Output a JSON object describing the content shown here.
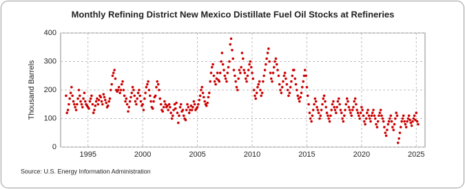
{
  "chart_data": {
    "type": "scatter",
    "title": "Monthly Refining District New Mexico Distillate Fuel Oil Stocks at Refineries",
    "ylabel": "Thousand Barrels",
    "source": "Source: U.S. Energy Information Administration",
    "color": "#cc0000",
    "grid": true,
    "xlim": [
      1992.5,
      2025.8
    ],
    "xticks": [
      1995,
      2000,
      2005,
      2010,
      2015,
      2020,
      2025
    ],
    "ylim": [
      0,
      400
    ],
    "yticks": [
      0,
      100,
      200,
      300,
      400
    ],
    "x": [
      1993,
      1993.08,
      1993.17,
      1993.25,
      1993.33,
      1993.42,
      1993.5,
      1993.58,
      1993.67,
      1993.75,
      1993.83,
      1993.92,
      1994,
      1994.08,
      1994.17,
      1994.25,
      1994.33,
      1994.42,
      1994.5,
      1994.58,
      1994.67,
      1994.75,
      1994.83,
      1994.92,
      1995,
      1995.08,
      1995.17,
      1995.25,
      1995.33,
      1995.42,
      1995.5,
      1995.58,
      1995.67,
      1995.75,
      1995.83,
      1995.92,
      1996,
      1996.08,
      1996.17,
      1996.25,
      1996.33,
      1996.42,
      1996.5,
      1996.58,
      1996.67,
      1996.75,
      1996.83,
      1996.92,
      1997,
      1997.08,
      1997.17,
      1997.25,
      1997.33,
      1997.42,
      1997.5,
      1997.58,
      1997.67,
      1997.75,
      1997.83,
      1997.92,
      1998,
      1998.08,
      1998.17,
      1998.25,
      1998.33,
      1998.42,
      1998.5,
      1998.58,
      1998.67,
      1998.75,
      1998.83,
      1998.92,
      1999,
      1999.08,
      1999.17,
      1999.25,
      1999.33,
      1999.42,
      1999.5,
      1999.58,
      1999.67,
      1999.75,
      1999.83,
      1999.92,
      2000,
      2000.08,
      2000.17,
      2000.25,
      2000.33,
      2000.42,
      2000.5,
      2000.58,
      2000.67,
      2000.75,
      2000.83,
      2000.92,
      2001,
      2001.08,
      2001.17,
      2001.25,
      2001.33,
      2001.42,
      2001.5,
      2001.58,
      2001.67,
      2001.75,
      2001.83,
      2001.92,
      2002,
      2002.08,
      2002.17,
      2002.25,
      2002.33,
      2002.42,
      2002.5,
      2002.58,
      2002.67,
      2002.75,
      2002.83,
      2002.92,
      2003,
      2003.08,
      2003.17,
      2003.25,
      2003.33,
      2003.42,
      2003.5,
      2003.58,
      2003.67,
      2003.75,
      2003.83,
      2003.92,
      2004,
      2004.08,
      2004.17,
      2004.25,
      2004.33,
      2004.42,
      2004.5,
      2004.58,
      2004.67,
      2004.75,
      2004.83,
      2004.92,
      2005,
      2005.08,
      2005.17,
      2005.25,
      2005.33,
      2005.42,
      2005.5,
      2005.58,
      2005.67,
      2005.75,
      2005.83,
      2005.92,
      2006,
      2006.08,
      2006.17,
      2006.25,
      2006.33,
      2006.42,
      2006.5,
      2006.58,
      2006.67,
      2006.75,
      2006.83,
      2006.92,
      2007,
      2007.08,
      2007.17,
      2007.25,
      2007.33,
      2007.42,
      2007.5,
      2007.58,
      2007.67,
      2007.75,
      2007.83,
      2007.92,
      2008,
      2008.08,
      2008.17,
      2008.25,
      2008.33,
      2008.42,
      2008.5,
      2008.58,
      2008.67,
      2008.75,
      2008.83,
      2008.92,
      2009,
      2009.08,
      2009.17,
      2009.25,
      2009.33,
      2009.42,
      2009.5,
      2009.58,
      2009.67,
      2009.75,
      2009.83,
      2009.92,
      2010,
      2010.08,
      2010.17,
      2010.25,
      2010.33,
      2010.42,
      2010.5,
      2010.58,
      2010.67,
      2010.75,
      2010.83,
      2010.92,
      2011,
      2011.08,
      2011.17,
      2011.25,
      2011.33,
      2011.42,
      2011.5,
      2011.58,
      2011.67,
      2011.75,
      2011.83,
      2011.92,
      2012,
      2012.08,
      2012.17,
      2012.25,
      2012.33,
      2012.42,
      2012.5,
      2012.58,
      2012.67,
      2012.75,
      2012.83,
      2012.92,
      2013,
      2013.08,
      2013.17,
      2013.25,
      2013.33,
      2013.42,
      2013.5,
      2013.58,
      2013.67,
      2013.75,
      2013.83,
      2013.92,
      2014,
      2014.08,
      2014.17,
      2014.25,
      2014.33,
      2014.42,
      2014.5,
      2014.58,
      2014.67,
      2014.75,
      2014.83,
      2014.92,
      2015,
      2015.08,
      2015.17,
      2015.25,
      2015.33,
      2015.42,
      2015.5,
      2015.58,
      2015.67,
      2015.75,
      2015.83,
      2015.92,
      2016,
      2016.08,
      2016.17,
      2016.25,
      2016.33,
      2016.42,
      2016.5,
      2016.58,
      2016.67,
      2016.75,
      2016.83,
      2016.92,
      2017,
      2017.08,
      2017.17,
      2017.25,
      2017.33,
      2017.42,
      2017.5,
      2017.58,
      2017.67,
      2017.75,
      2017.83,
      2017.92,
      2018,
      2018.08,
      2018.17,
      2018.25,
      2018.33,
      2018.42,
      2018.5,
      2018.58,
      2018.67,
      2018.75,
      2018.83,
      2018.92,
      2019,
      2019.08,
      2019.17,
      2019.25,
      2019.33,
      2019.42,
      2019.5,
      2019.58,
      2019.67,
      2019.75,
      2019.83,
      2019.92,
      2020,
      2020.08,
      2020.17,
      2020.25,
      2020.33,
      2020.42,
      2020.5,
      2020.58,
      2020.67,
      2020.75,
      2020.83,
      2020.92,
      2021,
      2021.08,
      2021.17,
      2021.25,
      2021.33,
      2021.42,
      2021.5,
      2021.58,
      2021.67,
      2021.75,
      2021.83,
      2021.92,
      2022,
      2022.08,
      2022.17,
      2022.25,
      2022.33,
      2022.42,
      2022.5,
      2022.58,
      2022.67,
      2022.75,
      2022.83,
      2022.92,
      2023,
      2023.08,
      2023.17,
      2023.25,
      2023.33,
      2023.42,
      2023.5,
      2023.58,
      2023.67,
      2023.75,
      2023.83,
      2023.92,
      2024,
      2024.08,
      2024.17,
      2024.25,
      2024.33,
      2024.42,
      2024.5,
      2024.58,
      2024.67,
      2024.75,
      2024.83,
      2024.92,
      2025,
      2025.08,
      2025.17
    ],
    "values": [
      180,
      120,
      130,
      150,
      170,
      190,
      210,
      180,
      160,
      150,
      140,
      130,
      150,
      170,
      200,
      180,
      160,
      150,
      140,
      170,
      190,
      160,
      150,
      145,
      140,
      135,
      160,
      170,
      180,
      150,
      120,
      130,
      145,
      160,
      170,
      150,
      165,
      180,
      175,
      160,
      150,
      185,
      175,
      165,
      155,
      140,
      145,
      160,
      170,
      200,
      220,
      250,
      260,
      270,
      240,
      200,
      195,
      200,
      210,
      190,
      200,
      220,
      230,
      200,
      180,
      160,
      170,
      150,
      125,
      140,
      160,
      175,
      190,
      210,
      200,
      180,
      160,
      150,
      170,
      190,
      200,
      180,
      160,
      145,
      150,
      130,
      170,
      190,
      210,
      220,
      230,
      200,
      180,
      160,
      140,
      135,
      160,
      175,
      180,
      210,
      230,
      220,
      200,
      170,
      150,
      130,
      125,
      140,
      160,
      150,
      140,
      145,
      130,
      150,
      140,
      120,
      100,
      110,
      130,
      150,
      135,
      155,
      120,
      85,
      110,
      140,
      150,
      125,
      130,
      110,
      100,
      95,
      130,
      150,
      140,
      120,
      130,
      145,
      130,
      140,
      160,
      150,
      130,
      135,
      140,
      150,
      165,
      180,
      200,
      210,
      190,
      175,
      160,
      150,
      145,
      155,
      175,
      190,
      230,
      260,
      280,
      290,
      250,
      230,
      220,
      240,
      260,
      235,
      230,
      260,
      300,
      330,
      290,
      270,
      250,
      240,
      230,
      260,
      280,
      300,
      360,
      380,
      340,
      310,
      270,
      250,
      230,
      210,
      200,
      240,
      270,
      260,
      280,
      330,
      310,
      270,
      260,
      240,
      230,
      250,
      270,
      290,
      300,
      280,
      260,
      240,
      200,
      180,
      170,
      190,
      210,
      220,
      230,
      200,
      180,
      190,
      230,
      250,
      270,
      290,
      310,
      330,
      345,
      300,
      260,
      240,
      230,
      260,
      280,
      300,
      310,
      290,
      270,
      250,
      220,
      200,
      190,
      210,
      230,
      250,
      260,
      240,
      220,
      200,
      180,
      190,
      210,
      230,
      250,
      270,
      270,
      240,
      220,
      200,
      180,
      170,
      160,
      175,
      190,
      210,
      230,
      250,
      270,
      250,
      210,
      180,
      150,
      120,
      100,
      90,
      110,
      130,
      150,
      170,
      160,
      140,
      130,
      120,
      100,
      110,
      130,
      150,
      170,
      180,
      160,
      140,
      120,
      110,
      100,
      90,
      110,
      130,
      150,
      160,
      140,
      130,
      120,
      140,
      160,
      170,
      150,
      130,
      120,
      100,
      90,
      110,
      130,
      150,
      170,
      160,
      140,
      130,
      120,
      110,
      130,
      140,
      160,
      170,
      150,
      130,
      120,
      110,
      100,
      120,
      140,
      130,
      110,
      90,
      80,
      100,
      120,
      130,
      110,
      100,
      90,
      110,
      120,
      130,
      110,
      100,
      80,
      70,
      90,
      110,
      120,
      130,
      110,
      100,
      90,
      70,
      50,
      40,
      60,
      80,
      90,
      100,
      110,
      90,
      70,
      60,
      80,
      100,
      120,
      110,
      15,
      30,
      50,
      70,
      90,
      100,
      110,
      90,
      80,
      70,
      90,
      100,
      110,
      95,
      85,
      75,
      90,
      100,
      110,
      95,
      120,
      90,
      80
    ]
  }
}
